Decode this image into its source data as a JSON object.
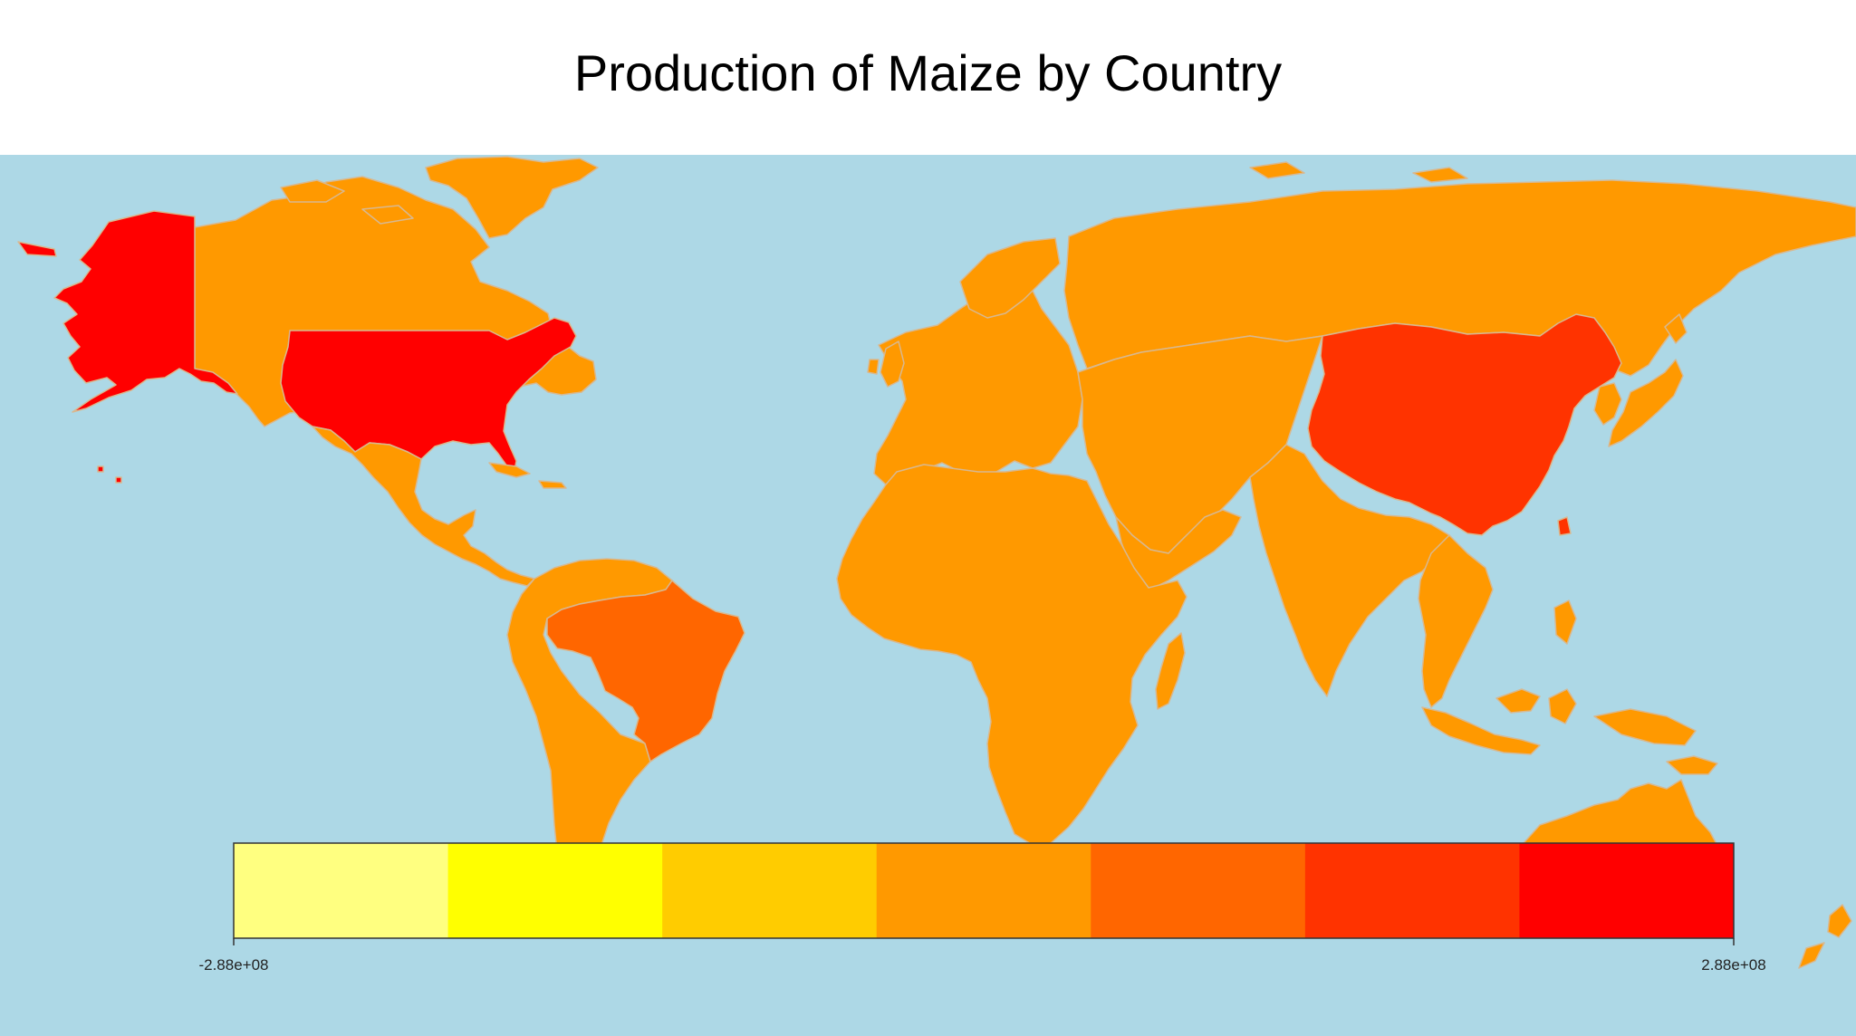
{
  "title": "Production of Maize by Country",
  "colors": {
    "ocean": "#add8e6",
    "border": "#d8b890",
    "scale": [
      "#ffff80",
      "#ffff00",
      "#ffcc00",
      "#ff9900",
      "#ff6600",
      "#ff3300",
      "#ff0000"
    ]
  },
  "legend": {
    "min_label": "-2.88e+08",
    "max_label": "2.88e+08"
  },
  "regions": [
    {
      "name": "Alaska",
      "class": 6
    },
    {
      "name": "United States",
      "class": 6
    },
    {
      "name": "Hawaii",
      "class": 6
    },
    {
      "name": "China",
      "class": 5
    },
    {
      "name": "Brazil",
      "class": 4
    },
    {
      "name": "Canada",
      "class": 3
    },
    {
      "name": "Mexico",
      "class": 3
    },
    {
      "name": "South America",
      "class": 3
    },
    {
      "name": "Africa",
      "class": 3
    },
    {
      "name": "Europe",
      "class": 3
    },
    {
      "name": "Russia",
      "class": 3
    },
    {
      "name": "Asia",
      "class": 3
    },
    {
      "name": "Australia",
      "class": 3
    },
    {
      "name": "Greenland",
      "class": 3
    }
  ]
}
